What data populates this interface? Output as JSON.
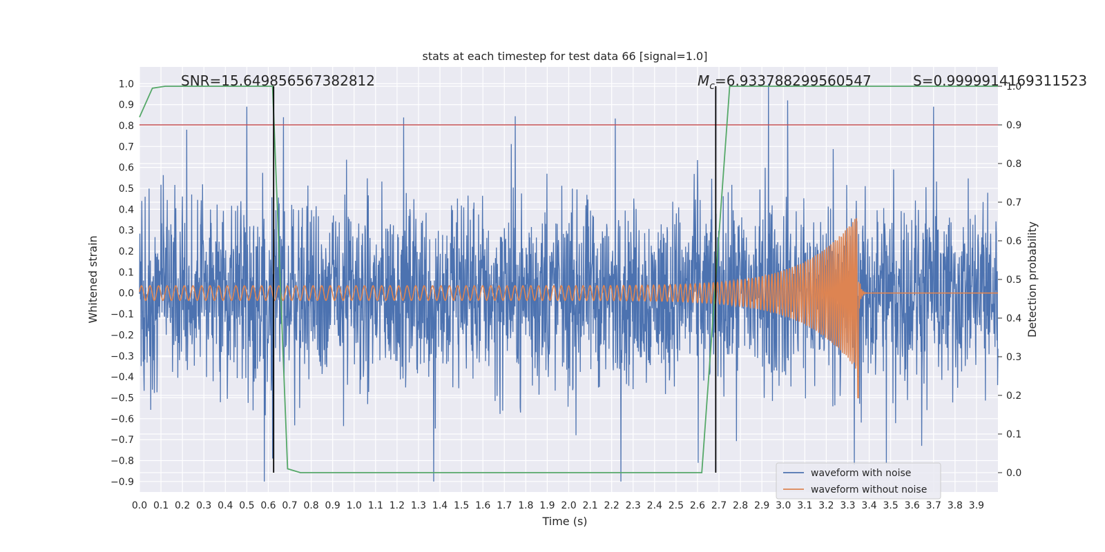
{
  "chart_data": {
    "type": "line",
    "title": "stats at each timestep for test data 66 [signal=1.0]",
    "xlabel": "Time (s)",
    "ylabel": "Whitened strain",
    "ylabel_right": "Detection probability",
    "xlim": [
      0.0,
      4.0
    ],
    "ylim": [
      -0.95,
      1.08
    ],
    "ylim_right": [
      -0.05,
      1.05
    ],
    "x_ticks": [
      "0.0",
      "0.1",
      "0.2",
      "0.3",
      "0.4",
      "0.5",
      "0.6",
      "0.7",
      "0.8",
      "0.9",
      "1.0",
      "1.1",
      "1.2",
      "1.3",
      "1.4",
      "1.5",
      "1.6",
      "1.7",
      "1.8",
      "1.9",
      "2.0",
      "2.1",
      "2.2",
      "2.3",
      "2.4",
      "2.5",
      "2.6",
      "2.7",
      "2.8",
      "2.9",
      "3.0",
      "3.1",
      "3.2",
      "3.3",
      "3.4",
      "3.5",
      "3.6",
      "3.7",
      "3.8",
      "3.9"
    ],
    "y_ticks": [
      "1.0",
      "0.9",
      "0.8",
      "0.7",
      "0.6",
      "0.5",
      "0.4",
      "0.3",
      "0.2",
      "0.1",
      "0.0",
      "−0.1",
      "−0.2",
      "−0.3",
      "−0.4",
      "−0.5",
      "−0.6",
      "−0.7",
      "−0.8",
      "−0.9"
    ],
    "y_tick_values": [
      1.0,
      0.9,
      0.8,
      0.7,
      0.6,
      0.5,
      0.4,
      0.3,
      0.2,
      0.1,
      0.0,
      -0.1,
      -0.2,
      -0.3,
      -0.4,
      -0.5,
      -0.6,
      -0.7,
      -0.8,
      -0.9
    ],
    "y_ticks_right": [
      "1.0",
      "0.9",
      "0.8",
      "0.7",
      "0.6",
      "0.5",
      "0.4",
      "0.3",
      "0.2",
      "0.1",
      "0.0"
    ],
    "y_tick_values_right": [
      1.0,
      0.9,
      0.8,
      0.7,
      0.6,
      0.5,
      0.4,
      0.3,
      0.2,
      0.1,
      0.0
    ],
    "series": [
      {
        "name": "waveform with noise",
        "color": "#4c72b0",
        "kind": "noise",
        "description_values": {
          "typical_min": -0.5,
          "typical_max": 0.5,
          "peak_max": 1.0,
          "peak_min": -0.9
        },
        "peaks": [
          [
            0.22,
            0.78
          ],
          [
            0.5,
            0.89
          ],
          [
            0.67,
            0.84
          ],
          [
            2.93,
            1.0
          ],
          [
            3.02,
            0.92
          ],
          [
            3.7,
            0.89
          ],
          [
            1.37,
            -0.9
          ],
          [
            3.33,
            -0.82
          ],
          [
            3.48,
            -0.81
          ],
          [
            0.62,
            -0.79
          ]
        ]
      },
      {
        "name": "waveform without noise",
        "color": "#dd8452",
        "kind": "chirp",
        "start_amplitude": 0.035,
        "peak_time": 3.35,
        "peak_positive": 0.39,
        "peak_negative": -0.5,
        "f_start": 25,
        "f_end": 120
      },
      {
        "name": "detection probability",
        "color": "#55a868",
        "axis": "right",
        "x": [
          0.0,
          0.06,
          0.12,
          0.62,
          0.69,
          0.75,
          2.62,
          2.75,
          4.0
        ],
        "y": [
          0.92,
          0.995,
          1.0,
          1.0,
          0.01,
          0.0,
          0.0,
          1.0,
          1.0
        ]
      }
    ],
    "threshold_line": {
      "axis": "right",
      "value": 0.9,
      "color": "#c44e52"
    },
    "vertical_lines": [
      {
        "x": 0.625,
        "color": "#000000"
      },
      {
        "x": 2.685,
        "color": "#000000"
      }
    ],
    "annotations": {
      "snr": "SNR=15.649856567382812",
      "mc_symbol": "M",
      "mc_sub": "c",
      "mc_value": "=6.933788299560547",
      "s": "S=0.9999914169311523"
    },
    "legend": {
      "position": "lower-right",
      "entries": [
        {
          "label": "waveform with noise",
          "color": "#4c72b0"
        },
        {
          "label": "waveform without noise",
          "color": "#dd8452"
        }
      ]
    },
    "colors": {
      "axes_bg": "#eaeaf2",
      "grid": "#ffffff",
      "text": "#262626"
    }
  }
}
